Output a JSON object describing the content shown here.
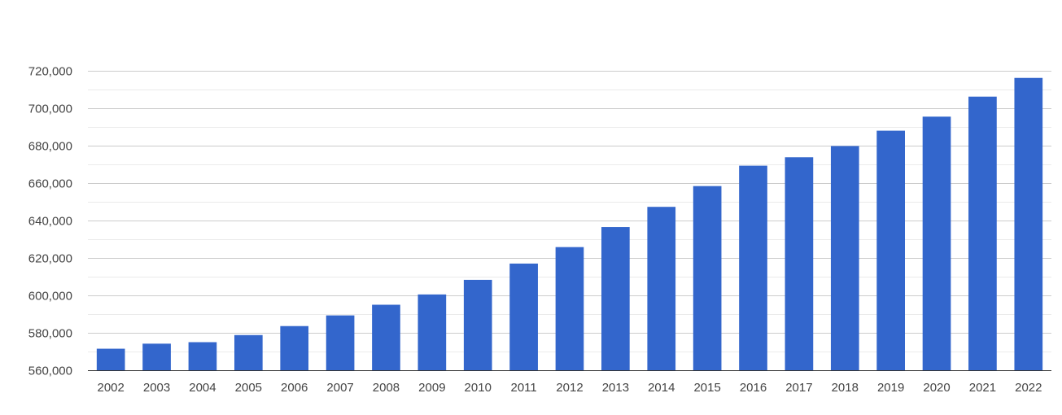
{
  "chart_data": {
    "type": "bar",
    "title": "",
    "xlabel": "",
    "ylabel": "",
    "categories": [
      "2002",
      "2003",
      "2004",
      "2005",
      "2006",
      "2007",
      "2008",
      "2009",
      "2010",
      "2011",
      "2012",
      "2013",
      "2014",
      "2015",
      "2016",
      "2017",
      "2018",
      "2019",
      "2020",
      "2021",
      "2022"
    ],
    "values": [
      571500,
      574200,
      575000,
      578800,
      583600,
      589300,
      595000,
      600500,
      608300,
      617000,
      625800,
      636500,
      647300,
      658400,
      669300,
      673800,
      679800,
      688000,
      695500,
      706200,
      716200
    ],
    "ylim": [
      560000,
      720000
    ],
    "yticks": [
      560000,
      580000,
      600000,
      620000,
      640000,
      660000,
      680000,
      700000,
      720000
    ],
    "ytick_labels": [
      "560,000",
      "580,000",
      "600,000",
      "620,000",
      "640,000",
      "660,000",
      "680,000",
      "700,000",
      "720,000"
    ],
    "grid": true,
    "legend": "none",
    "bar_color": "#3366cc"
  }
}
